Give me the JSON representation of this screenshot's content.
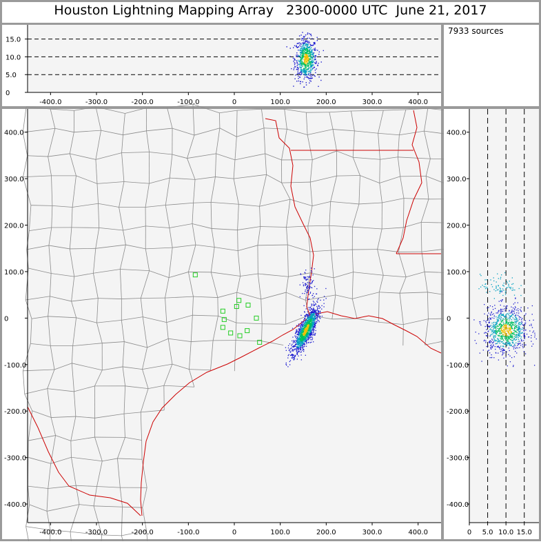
{
  "title": "Houston Lightning Mapping Array   2300-0000 UTC  June 21, 2017",
  "source_count": "7933 sources",
  "colors": {
    "frame": "#9a9a9a",
    "panel_bg": "#f4f4f4",
    "county_lines": "#8a8a8a",
    "coast_and_state": "#cc0000",
    "station_markers": "#22cc22",
    "density_low": "#1a1ad0",
    "density_mid": "#00a0c0",
    "density_high": "#00c060",
    "density_peak": "#f0c000"
  },
  "chart_data": [
    {
      "panel": "altitude-vs-east-west",
      "type": "scatter",
      "x_ticks": [
        "-400.0",
        "-300.0",
        "-200.0",
        "-100.0",
        "0",
        "100.0",
        "200.0",
        "300.0",
        "400.0"
      ],
      "y_ticks": [
        "0",
        "5.0",
        "10.0",
        "15.0"
      ],
      "xlim": [
        -450,
        450
      ],
      "ylim": [
        0,
        19
      ],
      "dashed_reference_lines": [
        5,
        10,
        15
      ],
      "source_cloud": {
        "x_center": 155,
        "y_center": 9.5,
        "x_spread": 12,
        "y_spread": 3
      }
    },
    {
      "panel": "plan-view-map",
      "type": "scatter",
      "x_ticks": [
        "-400.0",
        "-300.0",
        "-200.0",
        "-100.0",
        "0",
        "100.0",
        "200.0",
        "300.0",
        "400.0"
      ],
      "y_ticks": [
        "400.0",
        "300.0",
        "200.0",
        "100.0",
        "0",
        "-100.0",
        "-200.0",
        "-300.0",
        "-400.0"
      ],
      "xlim": [
        -450,
        450
      ],
      "ylim": [
        -440,
        450
      ],
      "main_cluster": {
        "x_center": 155,
        "y_center": -25,
        "x_spread": 15,
        "y_spread": 25
      },
      "northern_sparse_cluster": {
        "x_center": 160,
        "y_center": 70
      },
      "stations": [
        {
          "x": -85,
          "y": 93
        },
        {
          "x": -25,
          "y": 15
        },
        {
          "x": 5,
          "y": 25
        },
        {
          "x": 10,
          "y": 38
        },
        {
          "x": 30,
          "y": 28
        },
        {
          "x": -22,
          "y": -3
        },
        {
          "x": -25,
          "y": -20
        },
        {
          "x": -8,
          "y": -32
        },
        {
          "x": 12,
          "y": -38
        },
        {
          "x": 28,
          "y": -27
        },
        {
          "x": 48,
          "y": 0
        },
        {
          "x": 55,
          "y": -52
        }
      ]
    },
    {
      "panel": "north-south-vs-altitude",
      "type": "scatter",
      "x_ticks": [
        "0",
        "5.0",
        "10.0",
        "15.0"
      ],
      "y_ticks": [
        "400.0",
        "300.0",
        "200.0",
        "100.0",
        "0",
        "-100.0",
        "-200.0",
        "-300.0",
        "-400.0"
      ],
      "xlim": [
        0,
        19
      ],
      "ylim": [
        -440,
        450
      ],
      "dashed_reference_lines": [
        5,
        10,
        15
      ],
      "source_cloud": {
        "x_center": 10,
        "y_center": -25,
        "x_spread": 3,
        "y_spread": 25
      }
    }
  ]
}
